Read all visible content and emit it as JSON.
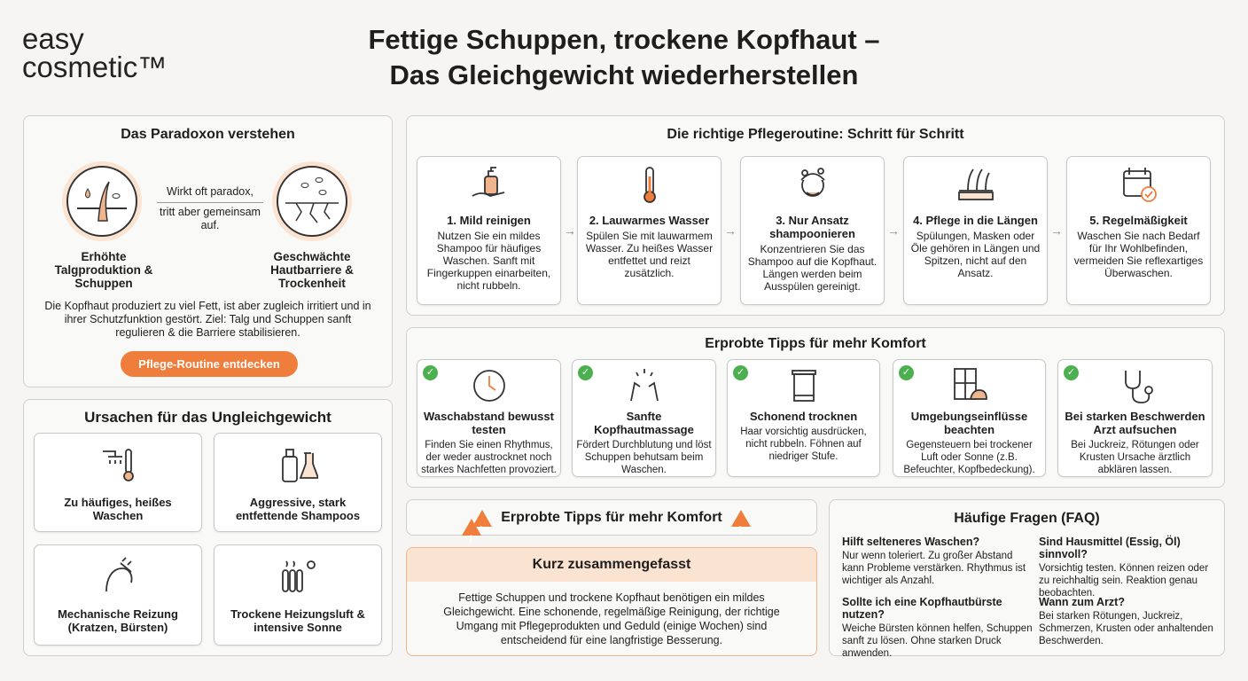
{
  "logo": {
    "line1": "easy",
    "line2": "cosmetic™"
  },
  "title": {
    "line1": "Fettige Schuppen, trockene Kopfhaut –",
    "line2": "Das Gleichgewicht wiederherstellen"
  },
  "colors": {
    "accent": "#ef7d3c",
    "peach": "#fbe3d2",
    "check": "#4caf50"
  },
  "paradox": {
    "title": "Das Paradoxon verstehen",
    "left_label": "Erhöhte Talgproduktion & Schuppen",
    "arrow_text1": "Wirkt oft paradox,",
    "arrow_text2": "tritt aber gemeinsam auf.",
    "right_label": "Geschwächte Hautbarriere & Trockenheit",
    "description": "Die Kopfhaut produziert zu viel Fett, ist aber zugleich irritiert und in ihrer Schutzfunktion gestört. Ziel: Talg und Schuppen sanft regulieren & die Barriere stabilisieren.",
    "button": "Pflege-Routine entdecken"
  },
  "causes": {
    "title": "Ursachen für das Ungleichgewicht",
    "items": [
      {
        "label": "Zu häufiges, heißes Waschen",
        "icon": "shower-thermometer-icon"
      },
      {
        "label": "Aggressive, stark entfettende Shampoos",
        "icon": "bottle-flask-icon"
      },
      {
        "label": "Mechanische Reizung (Kratzen, Bürsten)",
        "icon": "head-brush-icon"
      },
      {
        "label": "Trockene Heizungsluft & intensive Sonne",
        "icon": "radiator-sun-icon"
      }
    ]
  },
  "routine": {
    "title": "Die richtige Pflegeroutine: Schritt für Schritt",
    "steps": [
      {
        "title": "1. Mild reinigen",
        "text": "Nutzen Sie ein mildes Shampoo für häufiges Waschen. Sanft mit Fingerkuppen einarbeiten, nicht rubbeln.",
        "icon": "pump-bottle-hand-icon"
      },
      {
        "title": "2. Lauwarmes Wasser",
        "text": "Spülen Sie mit lauwarmem Wasser. Zu heißes Wasser entfettet und reizt zusätzlich.",
        "icon": "thermometer-icon"
      },
      {
        "title": "3. Nur Ansatz shampoonieren",
        "text": "Konzentrieren Sie das Shampoo auf die Kopfhaut. Längen werden beim Ausspülen gereinigt.",
        "icon": "head-foam-icon"
      },
      {
        "title": "4. Pflege in die Längen",
        "text": "Spülungen, Masken oder Öle gehören in Längen und Spitzen, nicht auf den Ansatz.",
        "icon": "hair-strands-icon"
      },
      {
        "title": "5. Regelmäßigkeit",
        "text": "Waschen Sie nach Bedarf für Ihr Wohlbefinden, vermeiden Sie reflexartiges Überwaschen.",
        "icon": "calendar-check-icon"
      }
    ]
  },
  "tips": {
    "title": "Erprobte Tipps für mehr Komfort",
    "items": [
      {
        "title": "Waschabstand bewusst testen",
        "text": "Finden Sie einen Rhythmus, der weder austrocknet noch starkes Nachfetten provoziert.",
        "icon": "clock-icon"
      },
      {
        "title": "Sanfte Kopfhautmassage",
        "text": "Fördert Durchblutung und löst Schuppen behutsam beim Waschen.",
        "icon": "massage-hands-icon"
      },
      {
        "title": "Schonend trocknen",
        "text": "Haar vorsichtig ausdrücken, nicht rubbeln. Föhnen auf niedriger Stufe.",
        "icon": "towel-icon"
      },
      {
        "title": "Umgebungseinflüsse beachten",
        "text": "Gegensteuern bei trockener Luft oder Sonne (z.B. Befeuchter, Kopfbedeckung).",
        "icon": "window-hat-icon"
      },
      {
        "title": "Bei starken Beschwerden Arzt aufsuchen",
        "text": "Bei Juckreiz, Rötungen oder Krusten Ursache ärztlich abklären lassen.",
        "icon": "stethoscope-icon"
      }
    ]
  },
  "warning_bar": {
    "text": "Erprobte Tipps für mehr Komfort"
  },
  "summary": {
    "title": "Kurz zusammengefasst",
    "text": "Fettige Schuppen und trockene Kopfhaut benötigen ein mildes Gleichgewicht. Eine schonende, regelmäßige Reinigung, der richtige Umgang mit Pflegeprodukten und Geduld (einige Wochen) sind entscheidend für eine langfristige Besserung."
  },
  "faq": {
    "title": "Häufige Fragen (FAQ)",
    "items": [
      {
        "q": "Hilft selteneres Waschen?",
        "a": "Nur wenn toleriert. Zu großer Abstand kann Probleme verstärken. Rhythmus ist wichtiger als Anzahl."
      },
      {
        "q": "Sind Hausmittel (Essig, Öl) sinnvoll?",
        "a": "Vorsichtig testen. Können reizen oder zu reichhaltig sein. Reaktion genau beobachten."
      },
      {
        "q": "Sollte ich eine Kopfhautbürste nutzen?",
        "a": "Weiche Bürsten können helfen, Schuppen sanft zu lösen. Ohne starken Druck anwenden."
      },
      {
        "q": "Wann zum Arzt?",
        "a": "Bei starken Rötungen, Juckreiz, Schmerzen, Krusten oder anhaltenden Beschwerden."
      }
    ]
  }
}
